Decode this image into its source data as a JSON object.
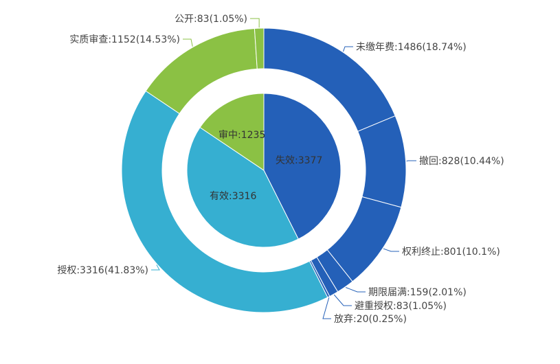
{
  "chart_data": {
    "type": "pie",
    "subtype": "nested-donut",
    "title": "",
    "inner": {
      "slices": [
        {
          "label": "失效:3377",
          "name": "失效",
          "value": 3377,
          "color": "#2460b8"
        },
        {
          "label": "有效:3316",
          "name": "有效",
          "value": 3316,
          "color": "#36afd1"
        },
        {
          "label": "审中:1235",
          "name": "审中",
          "value": 1235,
          "color": "#8bc144"
        }
      ]
    },
    "outer": {
      "slices": [
        {
          "label": "未缴年费:1486(18.74%)",
          "name": "未缴年费",
          "value": 1486,
          "percent": 18.74,
          "color": "#2460b8"
        },
        {
          "label": "撤回:828(10.44%)",
          "name": "撤回",
          "value": 828,
          "percent": 10.44,
          "color": "#2460b8"
        },
        {
          "label": "权利终止:801(10.1%)",
          "name": "权利终止",
          "value": 801,
          "percent": 10.1,
          "color": "#2460b8"
        },
        {
          "label": "期限届满:159(2.01%)",
          "name": "期限届满",
          "value": 159,
          "percent": 2.01,
          "color": "#2460b8"
        },
        {
          "label": "避重授权:83(1.05%)",
          "name": "避重授权",
          "value": 83,
          "percent": 1.05,
          "color": "#2460b8"
        },
        {
          "label": "放弃:20(0.25%)",
          "name": "放弃",
          "value": 20,
          "percent": 0.25,
          "color": "#2460b8"
        },
        {
          "label": "授权:3316(41.83%)",
          "name": "授权",
          "value": 3316,
          "percent": 41.83,
          "color": "#36afd1"
        },
        {
          "label": "实质审查:1152(14.53%)",
          "name": "实质审查",
          "value": 1152,
          "percent": 14.53,
          "color": "#8bc144"
        },
        {
          "label": "公开:83(1.05%)",
          "name": "公开",
          "value": 83,
          "percent": 1.05,
          "color": "#8bc144"
        }
      ]
    }
  }
}
